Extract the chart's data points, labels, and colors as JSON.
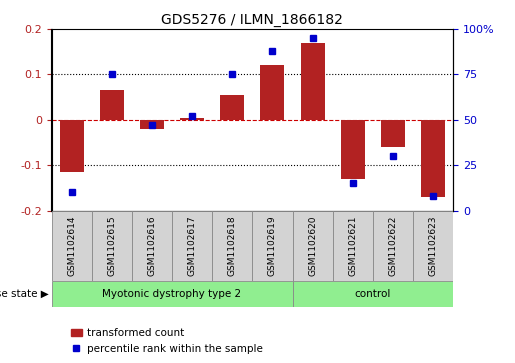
{
  "title": "GDS5276 / ILMN_1866182",
  "samples": [
    "GSM1102614",
    "GSM1102615",
    "GSM1102616",
    "GSM1102617",
    "GSM1102618",
    "GSM1102619",
    "GSM1102620",
    "GSM1102621",
    "GSM1102622",
    "GSM1102623"
  ],
  "transformed_count": [
    -0.115,
    0.065,
    -0.02,
    0.005,
    0.055,
    0.12,
    0.17,
    -0.13,
    -0.06,
    -0.17
  ],
  "percentile_rank": [
    10,
    75,
    47,
    52,
    75,
    88,
    95,
    15,
    30,
    8
  ],
  "bar_color": "#b22222",
  "dot_color": "#0000cc",
  "ylim_left": [
    -0.2,
    0.2
  ],
  "ylim_right": [
    0,
    100
  ],
  "yticks_left": [
    -0.2,
    -0.1,
    0.0,
    0.1,
    0.2
  ],
  "yticks_right": [
    0,
    25,
    50,
    75,
    100
  ],
  "ytick_labels_left": [
    "-0.2",
    "-0.1",
    "0",
    "0.1",
    "0.2"
  ],
  "ytick_labels_right": [
    "0",
    "25",
    "50",
    "75",
    "100%"
  ],
  "hline_color": "#cc0000",
  "dotted_lines": [
    -0.1,
    0.1
  ],
  "groups": [
    {
      "label": "Myotonic dystrophy type 2",
      "start": 0,
      "end": 6,
      "color": "#90ee90"
    },
    {
      "label": "control",
      "start": 6,
      "end": 10,
      "color": "#90ee90"
    }
  ],
  "disease_state_label": "disease state",
  "legend_bar_label": "transformed count",
  "legend_dot_label": "percentile rank within the sample",
  "sample_box_color": "#d3d3d3",
  "grid_bg": "#ffffff"
}
